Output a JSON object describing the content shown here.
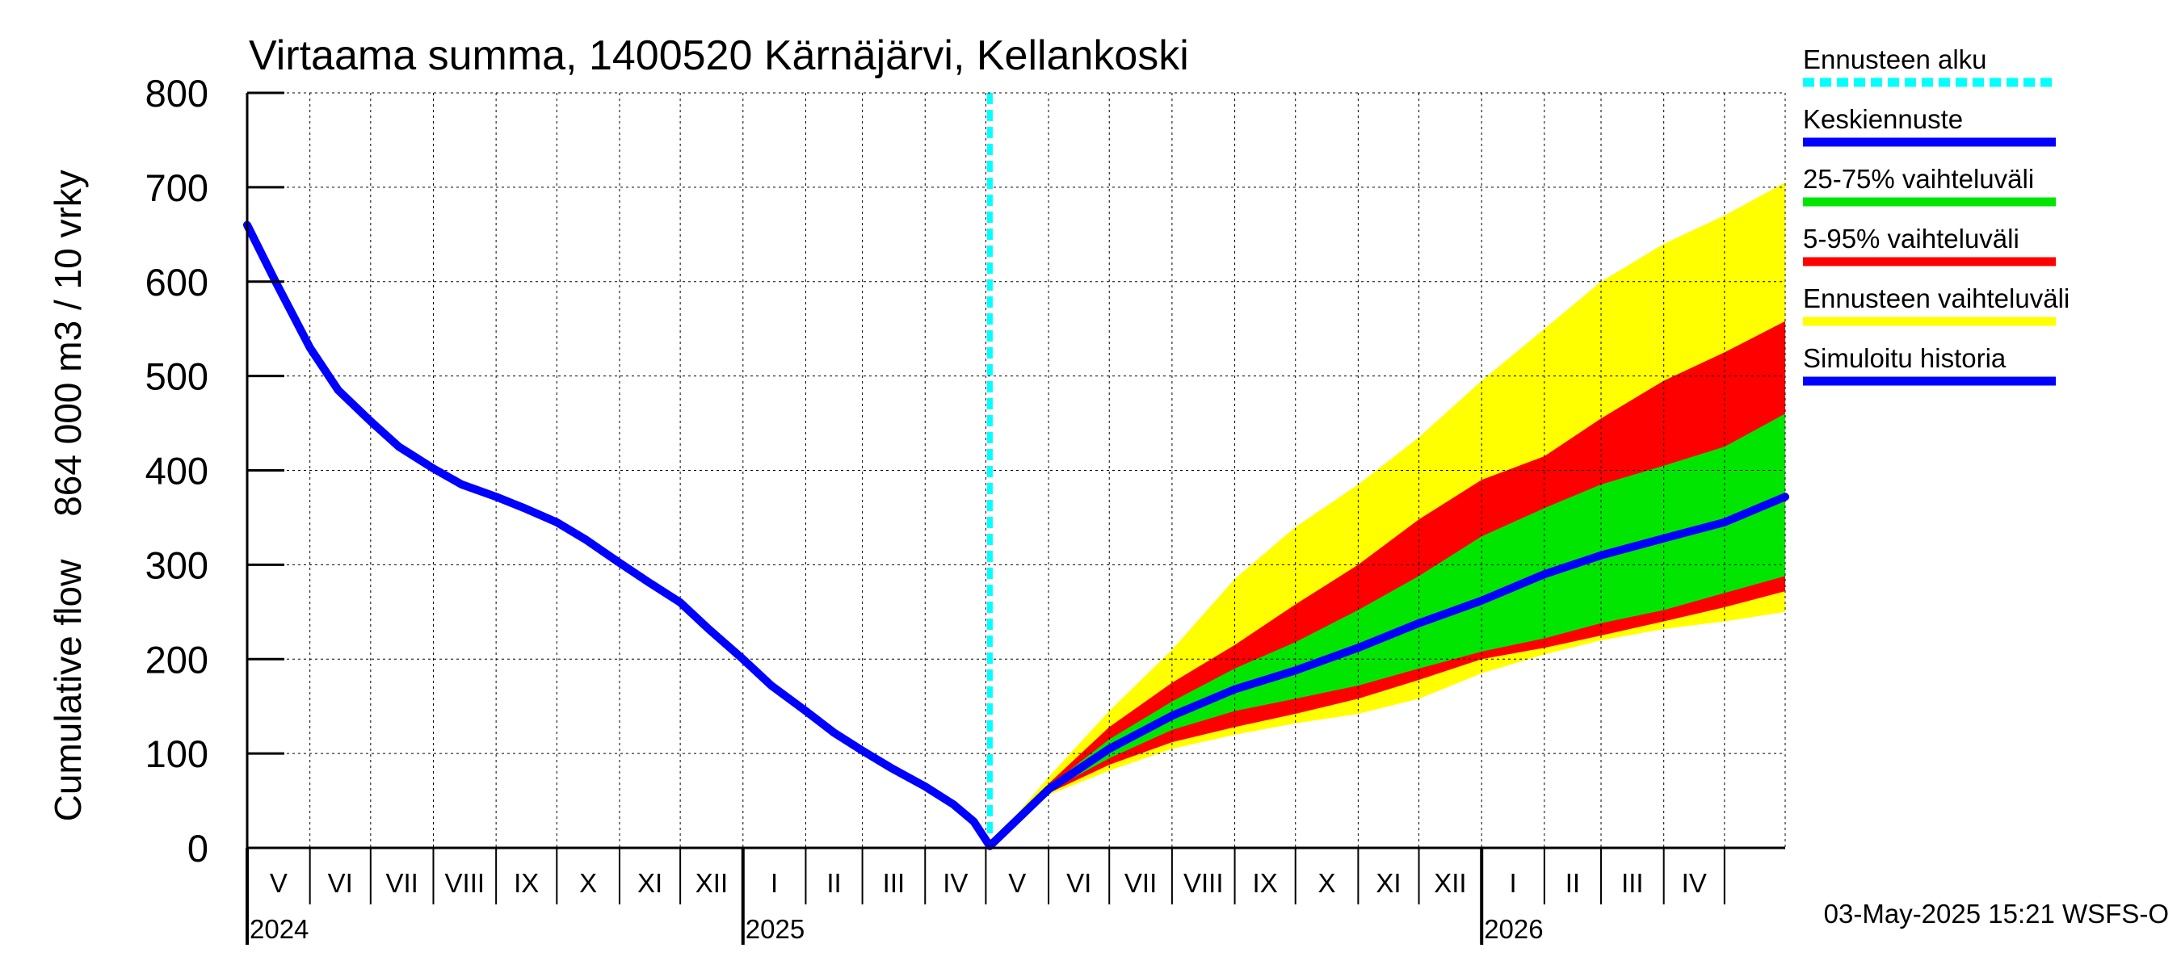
{
  "chart_data": {
    "type": "area",
    "title": "Virtaama summa, 1400520 Kärnäjärvi, Kellankoski",
    "ylabel_line1": "864 000 m3 / 10 vrky",
    "ylabel_line2": "Cumulative flow",
    "ylim": [
      0,
      800
    ],
    "yticks": [
      0,
      100,
      200,
      300,
      400,
      500,
      600,
      700,
      800
    ],
    "xlim": [
      "2024-05-01",
      "2026-05-31"
    ],
    "months": [
      {
        "label": "V",
        "start": "2024-05-01",
        "end": "2024-06-01"
      },
      {
        "label": "VI",
        "start": "2024-06-01",
        "end": "2024-07-01"
      },
      {
        "label": "VII",
        "start": "2024-07-01",
        "end": "2024-08-01"
      },
      {
        "label": "VIII",
        "start": "2024-08-01",
        "end": "2024-09-01"
      },
      {
        "label": "IX",
        "start": "2024-09-01",
        "end": "2024-10-01"
      },
      {
        "label": "X",
        "start": "2024-10-01",
        "end": "2024-11-01"
      },
      {
        "label": "XI",
        "start": "2024-11-01",
        "end": "2024-12-01"
      },
      {
        "label": "XII",
        "start": "2024-12-01",
        "end": "2025-01-01"
      },
      {
        "label": "I",
        "start": "2025-01-01",
        "end": "2025-02-01"
      },
      {
        "label": "II",
        "start": "2025-02-01",
        "end": "2025-03-01"
      },
      {
        "label": "III",
        "start": "2025-03-01",
        "end": "2025-04-01"
      },
      {
        "label": "IV",
        "start": "2025-04-01",
        "end": "2025-05-01"
      },
      {
        "label": "V",
        "start": "2025-05-01",
        "end": "2025-06-01"
      },
      {
        "label": "VI",
        "start": "2025-06-01",
        "end": "2025-07-01"
      },
      {
        "label": "VII",
        "start": "2025-07-01",
        "end": "2025-08-01"
      },
      {
        "label": "VIII",
        "start": "2025-08-01",
        "end": "2025-09-01"
      },
      {
        "label": "IX",
        "start": "2025-09-01",
        "end": "2025-10-01"
      },
      {
        "label": "X",
        "start": "2025-10-01",
        "end": "2025-11-01"
      },
      {
        "label": "XI",
        "start": "2025-11-01",
        "end": "2025-12-01"
      },
      {
        "label": "XII",
        "start": "2025-12-01",
        "end": "2026-01-01"
      },
      {
        "label": "I",
        "start": "2026-01-01",
        "end": "2026-02-01"
      },
      {
        "label": "II",
        "start": "2026-02-01",
        "end": "2026-03-01"
      },
      {
        "label": "III",
        "start": "2026-03-01",
        "end": "2026-04-01"
      },
      {
        "label": "IV",
        "start": "2026-04-01",
        "end": "2026-05-01"
      },
      {
        "label": "",
        "start": "2026-05-01",
        "end": "2026-05-31"
      }
    ],
    "years": [
      {
        "label": "2024",
        "date": "2024-05-01"
      },
      {
        "label": "2025",
        "date": "2025-01-01"
      },
      {
        "label": "2026",
        "date": "2026-01-01"
      }
    ],
    "forecast_start": "2025-05-03",
    "history": {
      "x": [
        "2024-05-01",
        "2024-05-15",
        "2024-06-01",
        "2024-06-15",
        "2024-07-01",
        "2024-07-15",
        "2024-08-01",
        "2024-08-15",
        "2024-09-01",
        "2024-09-15",
        "2024-10-01",
        "2024-10-15",
        "2024-11-01",
        "2024-11-15",
        "2024-12-01",
        "2024-12-15",
        "2025-01-01",
        "2025-01-15",
        "2025-02-01",
        "2025-02-15",
        "2025-03-01",
        "2025-03-15",
        "2025-04-01",
        "2025-04-15",
        "2025-04-25",
        "2025-05-03"
      ],
      "y": [
        660,
        600,
        530,
        485,
        452,
        425,
        402,
        385,
        372,
        360,
        345,
        327,
        302,
        282,
        260,
        232,
        200,
        172,
        145,
        122,
        103,
        85,
        65,
        46,
        28,
        2
      ]
    },
    "forecast": {
      "x": [
        "2025-05-03",
        "2025-06-01",
        "2025-07-01",
        "2025-08-01",
        "2025-09-01",
        "2025-10-01",
        "2025-11-01",
        "2025-12-01",
        "2026-01-01",
        "2026-02-01",
        "2026-03-01",
        "2026-04-01",
        "2026-05-01",
        "2026-05-31"
      ],
      "mean": [
        2,
        62,
        105,
        140,
        168,
        188,
        212,
        238,
        262,
        290,
        310,
        328,
        345,
        372
      ],
      "p25": [
        2,
        60,
        95,
        125,
        145,
        158,
        172,
        190,
        208,
        222,
        238,
        252,
        270,
        288
      ],
      "p75": [
        2,
        65,
        115,
        155,
        190,
        218,
        252,
        288,
        330,
        360,
        385,
        405,
        425,
        460
      ],
      "p05": [
        2,
        58,
        88,
        112,
        128,
        142,
        158,
        178,
        200,
        212,
        225,
        240,
        255,
        272
      ],
      "p95": [
        2,
        68,
        128,
        175,
        215,
        258,
        300,
        348,
        390,
        415,
        455,
        495,
        525,
        558
      ],
      "min": [
        2,
        56,
        82,
        105,
        120,
        132,
        142,
        158,
        185,
        205,
        220,
        232,
        240,
        250
      ],
      "max": [
        2,
        75,
        145,
        210,
        285,
        340,
        385,
        435,
        495,
        550,
        600,
        640,
        670,
        705
      ]
    },
    "colors": {
      "grid": "#000000",
      "history_line": "#0000ff",
      "mean_line": "#0000ff",
      "forecast_start_line": "#00ffff",
      "band_25_75": "#00e600",
      "band_5_95": "#ff0000",
      "band_min_max": "#ffff00"
    },
    "legend": {
      "placement": "right",
      "items": [
        {
          "label": "Ennusteen alku",
          "color": "#00ffff",
          "style": "dashed"
        },
        {
          "label": "Keskiennuste",
          "color": "#0000ff",
          "style": "solid"
        },
        {
          "label": "25-75% vaihteluväli",
          "color": "#00e600",
          "style": "solid"
        },
        {
          "label": "5-95% vaihteluväli",
          "color": "#ff0000",
          "style": "solid"
        },
        {
          "label": "Ennusteen vaihteluväli",
          "color": "#ffff00",
          "style": "solid"
        },
        {
          "label": "Simuloitu historia",
          "color": "#0000ff",
          "style": "solid"
        }
      ]
    },
    "footer": "03-May-2025 15:21 WSFS-O"
  }
}
